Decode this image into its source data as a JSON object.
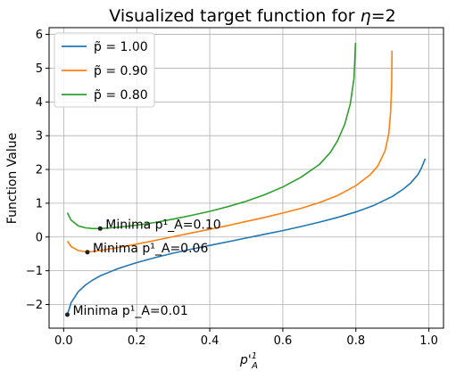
{
  "chart_data": {
    "type": "line",
    "title": "Visualized target function for η=2",
    "xlabel": "p'¹_A",
    "ylabel": "Function Value",
    "xlim": [
      -0.04,
      1.04
    ],
    "ylim": [
      -2.7,
      6.2
    ],
    "xticks": [
      0.0,
      0.2,
      0.4,
      0.6,
      0.8,
      1.0
    ],
    "xtick_labels": [
      "0.0",
      "0.2",
      "0.4",
      "0.6",
      "0.8",
      "1.0"
    ],
    "yticks": [
      -2,
      -1,
      0,
      1,
      2,
      3,
      4,
      5,
      6
    ],
    "ytick_labels": [
      "−2",
      "−1",
      "0",
      "1",
      "2",
      "3",
      "4",
      "5",
      "6"
    ],
    "grid": true,
    "legend_position": "top-left",
    "series": [
      {
        "name": "p̃ = 1.00",
        "color": "#1f77b4",
        "points": [
          [
            0.01,
            -2.3
          ],
          [
            0.02,
            -1.95
          ],
          [
            0.04,
            -1.62
          ],
          [
            0.06,
            -1.42
          ],
          [
            0.08,
            -1.27
          ],
          [
            0.1,
            -1.15
          ],
          [
            0.15,
            -0.93
          ],
          [
            0.2,
            -0.76
          ],
          [
            0.25,
            -0.61
          ],
          [
            0.3,
            -0.48
          ],
          [
            0.35,
            -0.36
          ],
          [
            0.4,
            -0.25
          ],
          [
            0.45,
            -0.14
          ],
          [
            0.5,
            -0.03
          ],
          [
            0.55,
            0.08
          ],
          [
            0.6,
            0.19
          ],
          [
            0.65,
            0.31
          ],
          [
            0.7,
            0.44
          ],
          [
            0.75,
            0.58
          ],
          [
            0.8,
            0.74
          ],
          [
            0.85,
            0.94
          ],
          [
            0.9,
            1.2
          ],
          [
            0.93,
            1.42
          ],
          [
            0.95,
            1.6
          ],
          [
            0.97,
            1.85
          ],
          [
            0.98,
            2.05
          ],
          [
            0.99,
            2.32
          ]
        ]
      },
      {
        "name": "p̃ = 0.90",
        "color": "#ff7f0e",
        "points": [
          [
            0.01,
            -0.12
          ],
          [
            0.02,
            -0.28
          ],
          [
            0.04,
            -0.4
          ],
          [
            0.06,
            -0.44
          ],
          [
            0.08,
            -0.43
          ],
          [
            0.1,
            -0.4
          ],
          [
            0.15,
            -0.31
          ],
          [
            0.2,
            -0.21
          ],
          [
            0.25,
            -0.1
          ],
          [
            0.3,
            0.01
          ],
          [
            0.35,
            0.12
          ],
          [
            0.4,
            0.23
          ],
          [
            0.45,
            0.34
          ],
          [
            0.5,
            0.46
          ],
          [
            0.55,
            0.58
          ],
          [
            0.6,
            0.71
          ],
          [
            0.65,
            0.85
          ],
          [
            0.7,
            1.02
          ],
          [
            0.75,
            1.23
          ],
          [
            0.8,
            1.52
          ],
          [
            0.84,
            1.85
          ],
          [
            0.86,
            2.1
          ],
          [
            0.88,
            2.55
          ],
          [
            0.89,
            3.05
          ],
          [
            0.895,
            3.7
          ],
          [
            0.898,
            4.5
          ],
          [
            0.899,
            5.52
          ]
        ]
      },
      {
        "name": "p̃ = 0.80",
        "color": "#2ca02c",
        "points": [
          [
            0.01,
            0.72
          ],
          [
            0.02,
            0.5
          ],
          [
            0.04,
            0.33
          ],
          [
            0.06,
            0.27
          ],
          [
            0.08,
            0.25
          ],
          [
            0.1,
            0.25
          ],
          [
            0.15,
            0.29
          ],
          [
            0.2,
            0.35
          ],
          [
            0.25,
            0.43
          ],
          [
            0.3,
            0.53
          ],
          [
            0.35,
            0.64
          ],
          [
            0.4,
            0.76
          ],
          [
            0.45,
            0.9
          ],
          [
            0.5,
            1.06
          ],
          [
            0.55,
            1.25
          ],
          [
            0.6,
            1.48
          ],
          [
            0.65,
            1.77
          ],
          [
            0.7,
            2.15
          ],
          [
            0.73,
            2.5
          ],
          [
            0.75,
            2.85
          ],
          [
            0.77,
            3.35
          ],
          [
            0.785,
            3.95
          ],
          [
            0.795,
            4.7
          ],
          [
            0.799,
            5.75
          ]
        ]
      }
    ],
    "minima": [
      {
        "x": 0.1,
        "y": 0.25,
        "label": "Minima p¹_A=0.10"
      },
      {
        "x": 0.065,
        "y": -0.45,
        "label": "Minima p¹_A=0.06"
      },
      {
        "x": 0.01,
        "y": -2.3,
        "label": "Minima p¹_A=0.01"
      }
    ]
  }
}
